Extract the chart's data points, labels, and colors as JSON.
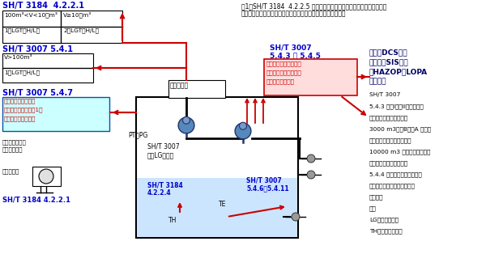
{
  "bg_color": "#ffffff",
  "blue": "#0000cc",
  "red": "#cc0000",
  "darkblue": "#000066",
  "black": "#000000",
  "note_line1": "注1：SH/T 3184  4.2.2.5 低压储罐及需要氮气等惰性气体密封的储罐，",
  "note_line2": "应在罐顶设置压力变送器测量压力，设置压力表就地测量压力。",
  "tbl1_title": "SH/T 3184  4.2.2.1",
  "tbl1_c1r1": "100m³<V<10万m³",
  "tbl1_c2r1": "V≥10万m³",
  "tbl1_c1r2": "1套LGT（H/L）",
  "tbl1_c2r2": "2套LGT（H/L）",
  "tbl2_title": "SH/T 3007 5.4.1",
  "tbl2_r1": "V>100m³",
  "tbl2_r2": "1套LGT（H/L）",
  "box547_title": "SH/T 3007 5.4.7",
  "box547_line1": "低压、压力储罐设置",
  "box547_line2": "常压储罐不设置（注1）",
  "box547_line3": "不得共用同一取源口",
  "box547_fc": "#ccffff",
  "box547_ec": "#0055aa",
  "label_radar": "雷达液位计",
  "label_ptpg": "PT、PG",
  "label_nolg1": "SH/T 3007",
  "label_nolg2": "没有LG的要求",
  "box543_title1": "SH/T 3007",
  "box543_title2": "5.4.3 ～ 5.4.5",
  "box543_line1": "联锁液位仪表应单独设",
  "box543_line2": "置宜采用连续测量仪表",
  "box543_line3": "也可采用液位开关",
  "box543_fc": "#ffdddd",
  "box543_ec": "#cc0000",
  "right1_line1": "可能是DCS联锁",
  "right1_line2": "也可能是SIS联锁",
  "right1_line3": "由HAZOP和LOPA",
  "right1_line4": "分析确定",
  "right2_title": "SH/T 3007",
  "right2_l1": "5.4.3 储存I级和II级毒性液体",
  "right2_l2": "的储罐，容量大于或等于",
  "right2_l3": "3000 m3的甲B和乙A 类可燃",
  "right2_l4": "液体储罐，容量大于或等于",
  "right2_l5": "10000 m3 的其他液体储罐应",
  "right2_l6": "设高高液位报警及联锁。",
  "right2_l7": "5.4.4 装置原料储罐宜设低低",
  "right2_l8": "液位报警，低低液位报警宜联",
  "right2_l9": "锁停泵。",
  "right2_l10": "注，",
  "right2_l11": "LG：就地液位计",
  "right2_l12": "TH：双金属温度计",
  "bot_lbl1a": "SH/T 3184",
  "bot_lbl1b": "4.2.2.4",
  "bot_lbl2a": "SH/T 3007",
  "bot_lbl2b": "5.4.6、5.4.11",
  "bot_te": "TE",
  "bot_th": "TH",
  "bot_left1a": "标准通信信号去",
  "bot_left1b": "储罐测量系统",
  "bot_left2": "储券显示仪",
  "bot_left3": "SH/T 3184 4.2.2.1",
  "tank_fc": "#cce5ff",
  "tank_ec": "#000000"
}
